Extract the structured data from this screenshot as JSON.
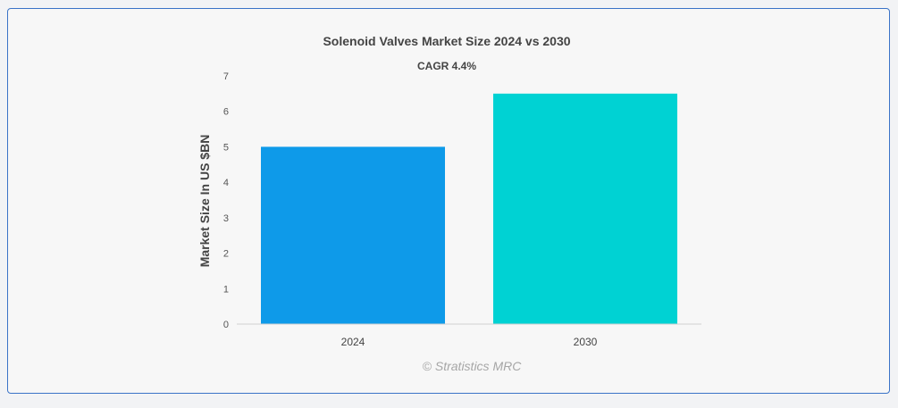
{
  "chart_data": {
    "type": "bar",
    "title": "Solenoid Valves Market Size 2024 vs 2030",
    "subtitle": "CAGR 4.4%",
    "ylabel": "Market Size In US $BN",
    "xlabel": "",
    "categories": [
      "2024",
      "2030"
    ],
    "values": [
      5.0,
      6.5
    ],
    "colors": [
      "#0e9ae9",
      "#00d2d3"
    ],
    "ylim": [
      0,
      7
    ],
    "yticks": [
      "0",
      "1",
      "2",
      "3",
      "4",
      "5",
      "6",
      "7"
    ],
    "grid": false,
    "legend": "none"
  },
  "credit": "© Stratistics MRC"
}
